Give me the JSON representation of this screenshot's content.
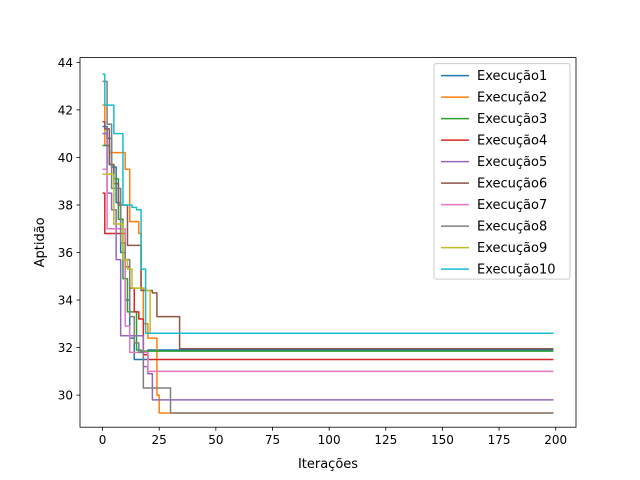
{
  "chart_data": {
    "type": "line",
    "title": "",
    "xlabel": "Iterações",
    "ylabel": "Aptidão",
    "xlim": [
      -9.95,
      208.95
    ],
    "ylim": [
      28.65,
      44.2
    ],
    "xticks": [
      0,
      25,
      50,
      75,
      100,
      125,
      150,
      175,
      200
    ],
    "yticks": [
      30,
      32,
      34,
      36,
      38,
      40,
      42,
      44
    ],
    "grid": false,
    "legend": {
      "placement": "top-right"
    },
    "series": [
      {
        "name": "Execução1",
        "color": "#1f77b4",
        "x": [
          0,
          2,
          4,
          6,
          8,
          10,
          12,
          14,
          16,
          20,
          199
        ],
        "y": [
          41.3,
          40.8,
          39.6,
          38.1,
          36.0,
          34.0,
          32.4,
          31.5,
          31.5,
          31.9,
          31.9
        ]
      },
      {
        "name": "Execução2",
        "color": "#ff7f0e",
        "x": [
          0,
          1,
          3,
          5,
          7,
          10,
          12,
          14,
          16,
          17,
          18,
          20,
          22,
          24,
          25,
          199
        ],
        "y": [
          42.2,
          40.5,
          40.2,
          40.2,
          40.2,
          39.5,
          37.3,
          37.3,
          36.8,
          34.5,
          33.0,
          32.4,
          32.4,
          30.0,
          29.25,
          29.25
        ]
      },
      {
        "name": "Execução3",
        "color": "#2ca02c",
        "x": [
          0,
          1,
          3,
          5,
          7,
          9,
          11,
          13,
          15,
          17,
          19,
          199
        ],
        "y": [
          40.5,
          40.5,
          39.7,
          39.1,
          37.4,
          34.9,
          33.5,
          33.5,
          31.9,
          31.85,
          31.85,
          31.85
        ]
      },
      {
        "name": "Execução4",
        "color": "#d62728",
        "x": [
          0,
          1,
          6,
          8,
          10,
          12,
          14,
          16,
          18,
          20,
          199
        ],
        "y": [
          38.5,
          36.8,
          36.8,
          36.8,
          35.4,
          34.5,
          33.5,
          33.2,
          31.7,
          31.5,
          31.5
        ]
      },
      {
        "name": "Execução5",
        "color": "#9467bd",
        "x": [
          0,
          2,
          4,
          6,
          8,
          12,
          16,
          18,
          20,
          22,
          199
        ],
        "y": [
          41.0,
          38.5,
          37.8,
          35.7,
          32.5,
          32.5,
          32.5,
          31.2,
          30.9,
          29.8,
          29.8
        ]
      },
      {
        "name": "Execução6",
        "color": "#8c564b",
        "x": [
          0,
          1,
          3,
          5,
          7,
          9,
          11,
          15,
          17,
          19,
          22,
          24,
          26,
          28,
          32,
          34,
          199
        ],
        "y": [
          41.5,
          41.2,
          39.7,
          38.9,
          38.0,
          38.0,
          36.3,
          36.3,
          34.4,
          34.4,
          34.3,
          33.3,
          33.3,
          33.3,
          33.3,
          31.95,
          31.95
        ]
      },
      {
        "name": "Execução7",
        "color": "#e377c2",
        "x": [
          0,
          2,
          4,
          6,
          8,
          10,
          12,
          14,
          16,
          18,
          20,
          22,
          199
        ],
        "y": [
          39.5,
          37.0,
          37.0,
          37.0,
          37.0,
          32.9,
          31.8,
          31.8,
          31.8,
          31.8,
          31.0,
          31.0,
          31.0
        ]
      },
      {
        "name": "Execução8",
        "color": "#7f7f7f",
        "x": [
          0,
          2,
          4,
          6,
          8,
          10,
          12,
          14,
          16,
          18,
          20,
          26,
          28,
          30,
          199
        ],
        "y": [
          43.2,
          41.4,
          38.7,
          38.7,
          36.4,
          35.7,
          33.3,
          32.2,
          31.8,
          30.3,
          30.3,
          30.3,
          30.3,
          29.25,
          29.25
        ]
      },
      {
        "name": "Execução9",
        "color": "#bcbd22",
        "x": [
          0,
          1,
          3,
          5,
          7,
          9,
          11,
          13,
          15,
          17,
          19,
          21,
          199
        ],
        "y": [
          39.3,
          39.3,
          39.3,
          37.2,
          37.2,
          35.7,
          35.3,
          34.5,
          34.5,
          34.5,
          34.4,
          32.6,
          32.6
        ]
      },
      {
        "name": "Execução10",
        "color": "#17becf",
        "x": [
          0,
          1,
          3,
          5,
          7,
          9,
          11,
          13,
          15,
          17,
          19,
          21,
          199
        ],
        "y": [
          43.5,
          42.2,
          42.2,
          41.0,
          41.0,
          38.0,
          38.0,
          37.9,
          37.8,
          35.3,
          32.6,
          32.6,
          32.6
        ]
      }
    ]
  }
}
